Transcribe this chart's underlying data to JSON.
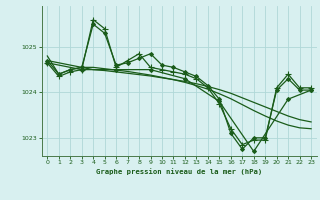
{
  "title": "Graphe pression niveau de la mer (hPa)",
  "background_color": "#d8f0f0",
  "grid_color": "#b0d8d8",
  "line_color": "#1a5c1a",
  "xlim": [
    -0.5,
    23.5
  ],
  "ylim": [
    1022.6,
    1025.9
  ],
  "yticks": [
    1023,
    1024,
    1025
  ],
  "xticks": [
    0,
    1,
    2,
    3,
    4,
    5,
    6,
    7,
    8,
    9,
    10,
    11,
    12,
    13,
    14,
    15,
    16,
    17,
    18,
    19,
    20,
    21,
    22,
    23
  ],
  "series": [
    {
      "x": [
        0,
        1,
        2,
        3,
        4,
        5,
        6,
        7,
        8,
        9,
        10,
        11,
        12,
        13,
        14,
        15,
        16,
        17,
        18,
        19,
        20,
        21,
        22,
        23
      ],
      "y": [
        1024.7,
        1024.4,
        1024.5,
        1024.55,
        1025.5,
        1025.3,
        1024.6,
        1024.65,
        1024.75,
        1024.85,
        1024.6,
        1024.55,
        1024.45,
        1024.35,
        1024.15,
        1023.85,
        1023.1,
        1022.75,
        1023.0,
        1023.0,
        1024.05,
        1024.3,
        1024.05,
        1024.05
      ],
      "marker": "D",
      "markersize": 2.0,
      "linewidth": 0.9
    },
    {
      "x": [
        0,
        1,
        2,
        3,
        4,
        5,
        6,
        7,
        8,
        9,
        10,
        11,
        12,
        13,
        14,
        15,
        16,
        17,
        18,
        19,
        20,
        21,
        22,
        23
      ],
      "y": [
        1024.65,
        1024.35,
        1024.45,
        1024.5,
        1025.6,
        1025.4,
        1024.55,
        1024.7,
        1024.85,
        1024.55,
        1024.5,
        1024.45,
        1024.4,
        1024.3,
        1024.1,
        1023.75,
        1023.2,
        1022.85,
        1022.95,
        1022.95,
        1024.1,
        1024.4,
        1024.1,
        1024.1
      ],
      "marker": "+",
      "markersize": 4.0,
      "linewidth": 0.9
    },
    {
      "x": [
        0,
        3,
        6,
        9,
        12,
        15,
        18,
        21,
        23
      ],
      "y": [
        1024.65,
        1024.5,
        1024.5,
        1024.5,
        1024.3,
        1023.8,
        1022.7,
        1023.85,
        1024.05
      ],
      "marker": "D",
      "markersize": 2.0,
      "linewidth": 0.9
    },
    {
      "x": [
        0,
        1,
        2,
        3,
        4,
        5,
        6,
        7,
        8,
        9,
        10,
        11,
        12,
        13,
        14,
        15,
        16,
        17,
        18,
        19,
        20,
        21,
        22,
        23
      ],
      "y": [
        1024.7,
        1024.65,
        1024.6,
        1024.55,
        1024.5,
        1024.48,
        1024.45,
        1024.42,
        1024.39,
        1024.36,
        1024.32,
        1024.28,
        1024.24,
        1024.19,
        1024.13,
        1024.06,
        1023.98,
        1023.88,
        1023.78,
        1023.68,
        1023.58,
        1023.48,
        1023.4,
        1023.35
      ],
      "marker": null,
      "markersize": 0,
      "linewidth": 0.9
    },
    {
      "x": [
        0,
        1,
        2,
        3,
        4,
        5,
        6,
        7,
        8,
        9,
        10,
        11,
        12,
        13,
        14,
        15,
        16,
        17,
        18,
        19,
        20,
        21,
        22,
        23
      ],
      "y": [
        1024.8,
        1024.4,
        1024.5,
        1024.55,
        1024.55,
        1024.52,
        1024.49,
        1024.46,
        1024.42,
        1024.38,
        1024.33,
        1024.28,
        1024.22,
        1024.15,
        1024.07,
        1023.97,
        1023.86,
        1023.73,
        1023.6,
        1023.48,
        1023.37,
        1023.28,
        1023.22,
        1023.2
      ],
      "marker": null,
      "markersize": 0,
      "linewidth": 0.9
    }
  ]
}
